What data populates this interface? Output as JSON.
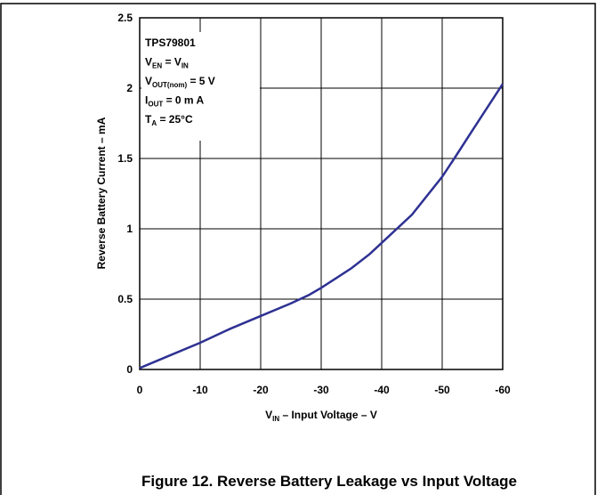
{
  "chart_data": {
    "type": "line",
    "ylabel": "Reverse Battery Current – mA",
    "xlabel": [
      "V",
      "IN",
      " – Input Voltage – V"
    ],
    "caption": "Figure 12. Reverse Battery Leakage vs Input Voltage",
    "annotations": [
      [
        "TPS79801"
      ],
      [
        "V",
        "EN",
        " = V",
        "IN"
      ],
      [
        "V",
        "OUT(nom)",
        " = 5 V"
      ],
      [
        "I",
        "OUT",
        " = 0 m A"
      ],
      [
        "T",
        "A",
        " = 25°C"
      ]
    ],
    "x": [
      0,
      -5,
      -10,
      -15,
      -20,
      -25,
      -28,
      -30,
      -35,
      -38,
      -40,
      -45,
      -50,
      -52,
      -55,
      -60
    ],
    "series": [
      {
        "color": "#2e3192",
        "values": [
          0.01,
          0.1,
          0.19,
          0.29,
          0.38,
          0.47,
          0.53,
          0.58,
          0.72,
          0.82,
          0.9,
          1.1,
          1.37,
          1.5,
          1.7,
          2.03
        ]
      }
    ],
    "xlim": [
      0,
      -60
    ],
    "xticks": [
      0,
      -10,
      -20,
      -30,
      -40,
      -50,
      -60
    ],
    "ylim": [
      0,
      2.5
    ],
    "yticks": [
      0,
      0.5,
      1,
      1.5,
      2,
      2.5
    ],
    "grid": true
  }
}
